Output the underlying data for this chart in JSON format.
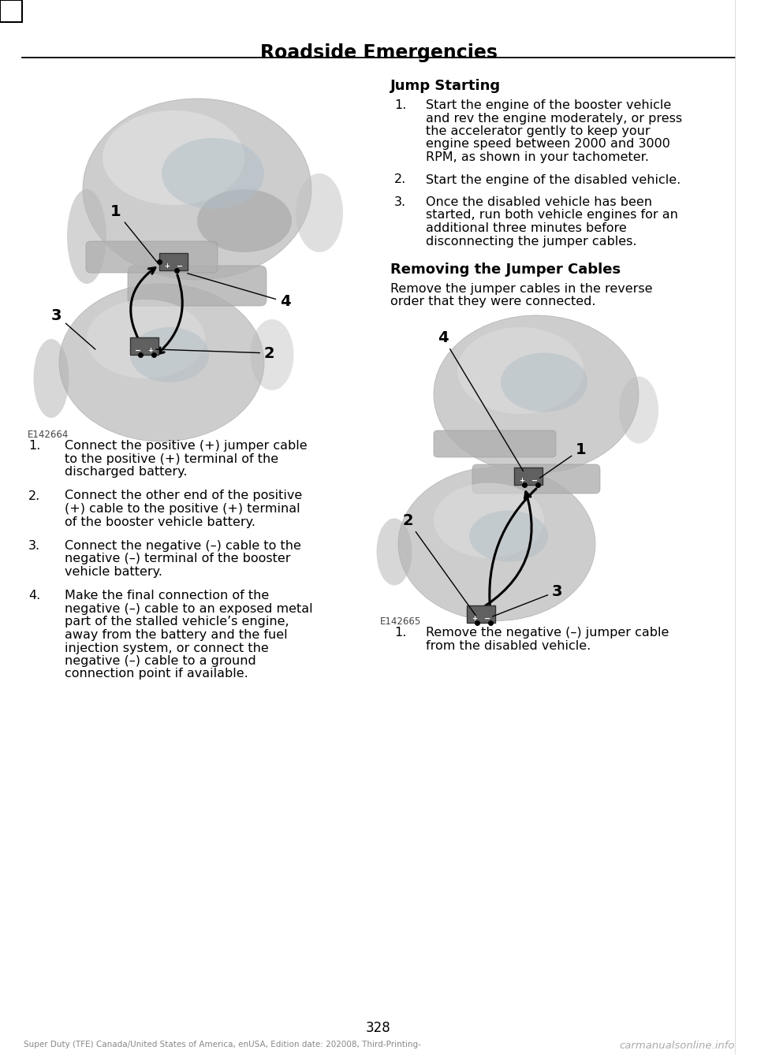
{
  "page_title": "Roadside Emergencies",
  "page_number": "328",
  "bg": "#ffffff",
  "footer_text": "Super Duty (TFE) Canada/United States of America, enUSA, Edition date: 202008, Third-Printing-",
  "watermark": "carmanualsonline.info",
  "image1_label": "E142664",
  "image2_label": "E142665",
  "section_jump_starting": "Jump Starting",
  "section_removing": "Removing the Jumper Cables",
  "removing_intro": "Remove the jumper cables in the reverse\norder that they were connected.",
  "left_items": [
    [
      "1.",
      "Connect the positive (+) jumper cable\nto the positive (+) terminal of the\ndischarged battery."
    ],
    [
      "2.",
      "Connect the other end of the positive\n(+) cable to the positive (+) terminal\nof the booster vehicle battery."
    ],
    [
      "3.",
      "Connect the negative (–) cable to the\nnegative (–) terminal of the booster\nvehicle battery."
    ],
    [
      "4.",
      "Make the final connection of the\nnegative (–) cable to an exposed metal\npart of the stalled vehicle’s engine,\naway from the battery and the fuel\ninjection system, or connect the\nnegative (–) cable to a ground\nconnection point if available."
    ]
  ],
  "right_js_items": [
    [
      "1.",
      "Start the engine of the booster vehicle\nand rev the engine moderately, or press\nthe accelerator gently to keep your\nengine speed between 2000 and 3000\nRPM, as shown in your tachometer."
    ],
    [
      "2.",
      "Start the engine of the disabled vehicle."
    ],
    [
      "3.",
      "Once the disabled vehicle has been\nstarted, run both vehicle engines for an\nadditional three minutes before\ndisconnecting the jumper cables."
    ]
  ],
  "right_rem_items": [
    [
      "1.",
      "Remove the negative (–) jumper cable\nfrom the disabled vehicle."
    ]
  ]
}
